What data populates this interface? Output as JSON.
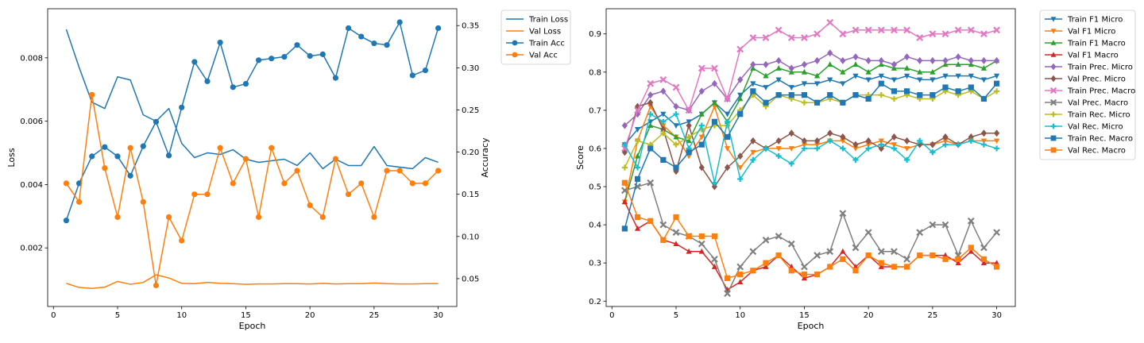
{
  "chart_data": [
    {
      "type": "line",
      "xlabel": "Epoch",
      "ylabel": "Loss",
      "y2label": "Accuracy",
      "xlim": [
        -0.45,
        31.45
      ],
      "ylim": [
        0.00015,
        0.00955
      ],
      "y2lim": [
        0.017,
        0.37
      ],
      "xticks": [
        0,
        5,
        10,
        15,
        20,
        25,
        30
      ],
      "yticks": [
        0.002,
        0.004,
        0.006,
        0.008
      ],
      "ytick_labels": [
        "0.002",
        "0.004",
        "0.006",
        "0.008"
      ],
      "y2ticks": [
        0.05,
        0.1,
        0.15,
        0.2,
        0.25,
        0.3,
        0.35
      ],
      "y2tick_labels": [
        "0.05",
        "0.10",
        "0.15",
        "0.20",
        "0.25",
        "0.30",
        "0.35"
      ],
      "grid": false,
      "legend_position": "outside-top-right",
      "x": [
        1,
        2,
        3,
        4,
        5,
        6,
        7,
        8,
        9,
        10,
        11,
        12,
        13,
        14,
        15,
        16,
        17,
        18,
        19,
        20,
        21,
        22,
        23,
        24,
        25,
        26,
        27,
        28,
        29,
        30
      ],
      "series": [
        {
          "name": "Train Loss",
          "axis": "left",
          "color": "#1f77b4",
          "marker": "none",
          "values": [
            0.0089,
            0.0077,
            0.0066,
            0.0064,
            0.0074,
            0.0073,
            0.0062,
            0.006,
            0.0064,
            0.0053,
            0.00485,
            0.005,
            0.00495,
            0.0051,
            0.0048,
            0.0047,
            0.00475,
            0.0048,
            0.0046,
            0.005,
            0.0045,
            0.0048,
            0.0046,
            0.0046,
            0.0052,
            0.0046,
            0.00455,
            0.0045,
            0.00485,
            0.0047
          ]
        },
        {
          "name": "Val Loss",
          "axis": "left",
          "color": "#ff7f0e",
          "marker": "none",
          "values": [
            0.00088,
            0.00075,
            0.00072,
            0.00076,
            0.00094,
            0.00085,
            0.00091,
            0.00115,
            0.00105,
            0.00088,
            0.00087,
            0.00091,
            0.00088,
            0.00087,
            0.00085,
            0.00086,
            0.00086,
            0.00087,
            0.00087,
            0.00086,
            0.00088,
            0.00086,
            0.00087,
            0.00087,
            0.00089,
            0.00087,
            0.00086,
            0.00086,
            0.00087,
            0.00087
          ]
        },
        {
          "name": "Train Acc",
          "axis": "right",
          "color": "#1f77b4",
          "marker": "circle",
          "values": [
            0.119,
            0.163,
            0.195,
            0.206,
            0.195,
            0.172,
            0.207,
            0.236,
            0.196,
            0.253,
            0.307,
            0.284,
            0.33,
            0.277,
            0.281,
            0.309,
            0.311,
            0.313,
            0.327,
            0.314,
            0.316,
            0.288,
            0.347,
            0.337,
            0.329,
            0.327,
            0.354,
            0.291,
            0.297,
            0.347
          ]
        },
        {
          "name": "Val Acc",
          "axis": "right",
          "color": "#ff7f0e",
          "marker": "circle",
          "values": [
            0.163,
            0.141,
            0.268,
            0.181,
            0.123,
            0.205,
            0.141,
            0.042,
            0.123,
            0.095,
            0.15,
            0.15,
            0.205,
            0.163,
            0.192,
            0.123,
            0.205,
            0.163,
            0.178,
            0.137,
            0.123,
            0.192,
            0.15,
            0.163,
            0.123,
            0.178,
            0.178,
            0.163,
            0.163,
            0.178
          ]
        }
      ]
    },
    {
      "type": "line",
      "xlabel": "Epoch",
      "ylabel": "Score",
      "xlim": [
        -0.45,
        31.45
      ],
      "ylim": [
        0.186,
        0.966
      ],
      "xticks": [
        0,
        5,
        10,
        15,
        20,
        25,
        30
      ],
      "yticks": [
        0.2,
        0.3,
        0.4,
        0.5,
        0.6,
        0.7,
        0.8,
        0.9
      ],
      "ytick_labels": [
        "0.2",
        "0.3",
        "0.4",
        "0.5",
        "0.6",
        "0.7",
        "0.8",
        "0.9"
      ],
      "grid": false,
      "legend_position": "outside-top-right",
      "x": [
        1,
        2,
        3,
        4,
        5,
        6,
        7,
        8,
        9,
        10,
        11,
        12,
        13,
        14,
        15,
        16,
        17,
        18,
        19,
        20,
        21,
        22,
        23,
        24,
        25,
        26,
        27,
        28,
        29,
        30
      ],
      "series": [
        {
          "name": "Train F1 Micro",
          "color": "#1f77b4",
          "marker": "tri_down",
          "values": [
            0.61,
            0.65,
            0.67,
            0.69,
            0.66,
            0.67,
            0.69,
            0.72,
            0.69,
            0.74,
            0.77,
            0.76,
            0.78,
            0.76,
            0.77,
            0.77,
            0.78,
            0.77,
            0.79,
            0.78,
            0.79,
            0.78,
            0.79,
            0.78,
            0.78,
            0.79,
            0.79,
            0.79,
            0.78,
            0.79
          ]
        },
        {
          "name": "Val F1 Micro",
          "color": "#ff7f0e",
          "marker": "tri_down",
          "values": [
            0.46,
            0.62,
            0.71,
            0.66,
            0.63,
            0.58,
            0.63,
            0.71,
            0.6,
            0.55,
            0.59,
            0.6,
            0.6,
            0.6,
            0.61,
            0.61,
            0.62,
            0.62,
            0.6,
            0.61,
            0.62,
            0.61,
            0.6,
            0.61,
            0.61,
            0.62,
            0.61,
            0.62,
            0.62,
            0.62
          ]
        },
        {
          "name": "Train F1 Macro",
          "color": "#2ca02c",
          "marker": "tri_up",
          "values": [
            0.46,
            0.58,
            0.66,
            0.65,
            0.63,
            0.62,
            0.69,
            0.72,
            0.67,
            0.73,
            0.81,
            0.79,
            0.81,
            0.8,
            0.8,
            0.79,
            0.82,
            0.8,
            0.82,
            0.8,
            0.82,
            0.81,
            0.81,
            0.8,
            0.8,
            0.82,
            0.82,
            0.82,
            0.81,
            0.83
          ]
        },
        {
          "name": "Val F1 Macro",
          "color": "#d62728",
          "marker": "tri_up",
          "values": [
            0.46,
            0.39,
            0.41,
            0.36,
            0.35,
            0.33,
            0.33,
            0.29,
            0.23,
            0.25,
            0.28,
            0.29,
            0.32,
            0.29,
            0.26,
            0.27,
            0.29,
            0.33,
            0.29,
            0.32,
            0.29,
            0.29,
            0.29,
            0.32,
            0.32,
            0.32,
            0.3,
            0.33,
            0.3,
            0.3
          ]
        },
        {
          "name": "Train Prec. Micro",
          "color": "#9467bd",
          "marker": "diamond",
          "values": [
            0.66,
            0.69,
            0.74,
            0.75,
            0.71,
            0.7,
            0.75,
            0.77,
            0.73,
            0.78,
            0.82,
            0.82,
            0.83,
            0.81,
            0.82,
            0.83,
            0.85,
            0.83,
            0.84,
            0.83,
            0.83,
            0.82,
            0.84,
            0.83,
            0.83,
            0.83,
            0.84,
            0.83,
            0.83,
            0.83
          ]
        },
        {
          "name": "Val Prec. Micro",
          "color": "#8c564b",
          "marker": "diamond",
          "values": [
            0.59,
            0.71,
            0.72,
            0.65,
            0.54,
            0.66,
            0.55,
            0.5,
            0.55,
            0.58,
            0.62,
            0.6,
            0.62,
            0.64,
            0.62,
            0.62,
            0.64,
            0.63,
            0.61,
            0.62,
            0.6,
            0.63,
            0.62,
            0.61,
            0.61,
            0.63,
            0.61,
            0.63,
            0.64,
            0.64
          ]
        },
        {
          "name": "Train Prec. Macro",
          "color": "#e377c2",
          "marker": "x",
          "values": [
            0.6,
            0.7,
            0.77,
            0.78,
            0.76,
            0.7,
            0.81,
            0.81,
            0.73,
            0.86,
            0.89,
            0.89,
            0.91,
            0.89,
            0.89,
            0.9,
            0.93,
            0.9,
            0.91,
            0.91,
            0.91,
            0.91,
            0.91,
            0.89,
            0.9,
            0.9,
            0.91,
            0.91,
            0.9,
            0.91
          ]
        },
        {
          "name": "Val Prec. Macro",
          "color": "#7f7f7f",
          "marker": "x",
          "values": [
            0.49,
            0.5,
            0.51,
            0.4,
            0.38,
            0.37,
            0.35,
            0.31,
            0.22,
            0.29,
            0.33,
            0.36,
            0.37,
            0.35,
            0.29,
            0.32,
            0.33,
            0.43,
            0.34,
            0.38,
            0.33,
            0.33,
            0.31,
            0.38,
            0.4,
            0.4,
            0.32,
            0.41,
            0.34,
            0.38
          ]
        },
        {
          "name": "Train Rec. Micro",
          "color": "#bcbd22",
          "marker": "plus",
          "values": [
            0.55,
            0.62,
            0.61,
            0.64,
            0.61,
            0.63,
            0.65,
            0.66,
            0.66,
            0.7,
            0.74,
            0.71,
            0.74,
            0.73,
            0.72,
            0.72,
            0.73,
            0.72,
            0.74,
            0.74,
            0.74,
            0.73,
            0.74,
            0.73,
            0.73,
            0.75,
            0.74,
            0.75,
            0.73,
            0.75
          ]
        },
        {
          "name": "Val Rec. Micro",
          "color": "#17becf",
          "marker": "plus",
          "values": [
            0.61,
            0.55,
            0.69,
            0.67,
            0.69,
            0.6,
            0.66,
            0.51,
            0.67,
            0.52,
            0.57,
            0.6,
            0.58,
            0.56,
            0.6,
            0.6,
            0.62,
            0.6,
            0.57,
            0.6,
            0.61,
            0.6,
            0.57,
            0.62,
            0.59,
            0.61,
            0.61,
            0.62,
            0.61,
            0.6
          ]
        },
        {
          "name": "Train Rec. Macro",
          "color": "#1f77b4",
          "marker": "square",
          "values": [
            0.39,
            0.52,
            0.6,
            0.57,
            0.55,
            0.59,
            0.61,
            0.67,
            0.63,
            0.69,
            0.75,
            0.72,
            0.74,
            0.74,
            0.74,
            0.72,
            0.74,
            0.72,
            0.74,
            0.73,
            0.77,
            0.75,
            0.75,
            0.74,
            0.74,
            0.76,
            0.75,
            0.76,
            0.73,
            0.77
          ]
        },
        {
          "name": "Val Rec. Macro",
          "color": "#ff7f0e",
          "marker": "square",
          "values": [
            0.51,
            0.42,
            0.41,
            0.36,
            0.42,
            0.37,
            0.37,
            0.37,
            0.26,
            0.27,
            0.28,
            0.3,
            0.32,
            0.28,
            0.27,
            0.27,
            0.29,
            0.31,
            0.28,
            0.32,
            0.3,
            0.29,
            0.29,
            0.32,
            0.32,
            0.31,
            0.31,
            0.34,
            0.31,
            0.29
          ]
        }
      ]
    }
  ]
}
